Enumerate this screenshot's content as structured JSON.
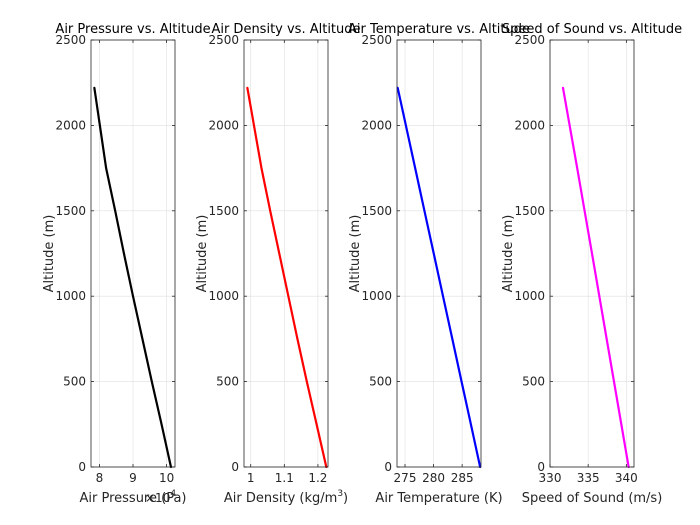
{
  "chart_data": [
    {
      "type": "line",
      "title": "Air Pressure vs. Altitude",
      "xlabel": "Air Pressure (Pa)",
      "ylabel": "Altitude (m)",
      "x_exponent_label": "×10",
      "x_exponent_power": "4",
      "xlim": [
        7.75,
        10.25
      ],
      "ylim": [
        0,
        2500
      ],
      "xticks": [
        8,
        9,
        10
      ],
      "xtick_labels": [
        "8",
        "9",
        "10"
      ],
      "yticks": [
        0,
        500,
        1000,
        1500,
        2000,
        2500
      ],
      "ytick_labels": [
        "0",
        "500",
        "1000",
        "1500",
        "2000",
        "2500"
      ],
      "grid": true,
      "series": [
        {
          "name": "Air Pressure",
          "color": "#000000",
          "x": [
            10.13,
            9.85,
            9.56,
            9.28,
            9.0,
            8.73,
            8.47,
            8.2,
            7.85
          ],
          "y": [
            0,
            250,
            500,
            750,
            1000,
            1250,
            1500,
            1750,
            2220
          ]
        }
      ]
    },
    {
      "type": "line",
      "title": "Air Density vs. Altitude",
      "xlabel_main": "Air Density (kg/m",
      "xlabel_sup": "3",
      "xlabel_end": ")",
      "ylabel": "Altitude (m)",
      "xlim": [
        0.98,
        1.23
      ],
      "ylim": [
        0,
        2500
      ],
      "xticks": [
        1.0,
        1.1,
        1.2
      ],
      "xtick_labels": [
        "1",
        "1.1",
        "1.2"
      ],
      "yticks": [
        0,
        500,
        1000,
        1500,
        2000,
        2500
      ],
      "ytick_labels": [
        "0",
        "500",
        "1000",
        "1500",
        "2000",
        "2500"
      ],
      "grid": true,
      "series": [
        {
          "name": "Air Density",
          "color": "#ff0000",
          "x": [
            1.225,
            1.196,
            1.167,
            1.139,
            1.112,
            1.085,
            1.058,
            1.032,
            0.99
          ],
          "y": [
            0,
            250,
            500,
            750,
            1000,
            1250,
            1500,
            1750,
            2220
          ]
        }
      ]
    },
    {
      "type": "line",
      "title": "Air Temperature vs. Altitude",
      "xlabel": "Air Temperature (K)",
      "ylabel": "Altitude (m)",
      "xlim": [
        273.6,
        288.3
      ],
      "ylim": [
        0,
        2500
      ],
      "xticks": [
        275,
        280,
        285
      ],
      "xtick_labels": [
        "275",
        "280",
        "285"
      ],
      "yticks": [
        0,
        500,
        1000,
        1500,
        2000,
        2500
      ],
      "ytick_labels": [
        "0",
        "500",
        "1000",
        "1500",
        "2000",
        "2500"
      ],
      "grid": true,
      "series": [
        {
          "name": "Air Temperature",
          "color": "#0000ff",
          "x": [
            288.15,
            286.53,
            284.9,
            283.28,
            281.65,
            280.03,
            278.4,
            276.78,
            273.72
          ],
          "y": [
            0,
            250,
            500,
            750,
            1000,
            1250,
            1500,
            1750,
            2220
          ]
        }
      ]
    },
    {
      "type": "line",
      "title": "Speed of Sound vs. Altitude",
      "xlabel": "Speed of Sound (m/s)",
      "ylabel": "Altitude (m)",
      "xlim": [
        330,
        341
      ],
      "ylim": [
        0,
        2500
      ],
      "xticks": [
        330,
        335,
        340
      ],
      "xtick_labels": [
        "330",
        "335",
        "340"
      ],
      "yticks": [
        0,
        500,
        1000,
        1500,
        2000,
        2500
      ],
      "ytick_labels": [
        "0",
        "500",
        "1000",
        "1500",
        "2000",
        "2500"
      ],
      "grid": true,
      "series": [
        {
          "name": "Speed of Sound",
          "color": "#ff00ff",
          "x": [
            340.3,
            339.34,
            338.38,
            337.42,
            336.46,
            335.5,
            334.53,
            333.56,
            331.7
          ],
          "y": [
            0,
            250,
            500,
            750,
            1000,
            1250,
            1500,
            1750,
            2220
          ]
        }
      ]
    }
  ]
}
